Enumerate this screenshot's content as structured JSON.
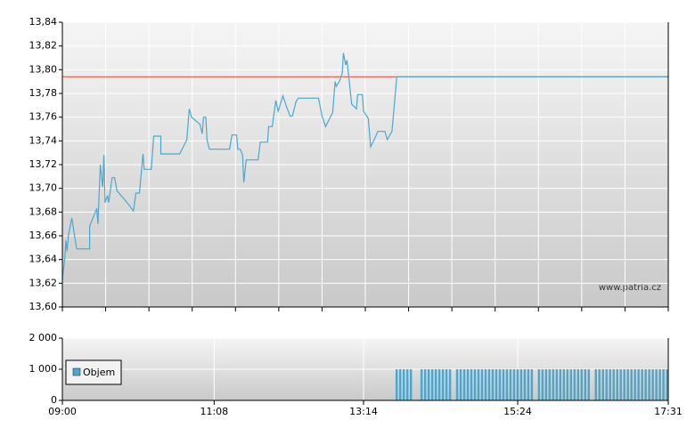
{
  "chart_data": [
    {
      "type": "line",
      "annotation": "www.patria.cz",
      "xlim": [
        "09:00",
        "17:31"
      ],
      "ylim": [
        13.6,
        13.84
      ],
      "yticks": [
        {
          "value": 13.6,
          "label": "13,60"
        },
        {
          "value": 13.62,
          "label": "13,62"
        },
        {
          "value": 13.64,
          "label": "13,64"
        },
        {
          "value": 13.66,
          "label": "13,66"
        },
        {
          "value": 13.68,
          "label": "13,68"
        },
        {
          "value": 13.7,
          "label": "13,70"
        },
        {
          "value": 13.72,
          "label": "13,72"
        },
        {
          "value": 13.74,
          "label": "13,74"
        },
        {
          "value": 13.76,
          "label": "13,76"
        },
        {
          "value": 13.78,
          "label": "13,78"
        },
        {
          "value": 13.8,
          "label": "13,80"
        },
        {
          "value": 13.82,
          "label": "13,82"
        },
        {
          "value": 13.84,
          "label": "13,84"
        }
      ],
      "grid": true,
      "reference_line": {
        "value": 13.794,
        "color": "#e8594a"
      },
      "x": [
        "09:00",
        "09:02",
        "09:03",
        "09:04",
        "09:05",
        "09:08",
        "09:12",
        "09:23",
        "09:23",
        "09:29",
        "09:30",
        "09:32",
        "09:34",
        "09:35",
        "09:36",
        "09:38",
        "09:39",
        "09:42",
        "09:44",
        "09:46",
        "09:53",
        "10:00",
        "10:02",
        "10:05",
        "10:08",
        "10:09",
        "10:15",
        "10:17",
        "10:23",
        "10:23",
        "10:39",
        "10:45",
        "10:47",
        "10:49",
        "10:56",
        "10:58",
        "10:59",
        "11:01",
        "11:02",
        "11:04",
        "11:21",
        "11:23",
        "11:27",
        "11:28",
        "11:30",
        "11:32",
        "11:33",
        "11:35",
        "11:45",
        "11:47",
        "11:53",
        "11:54",
        "11:57",
        "12:00",
        "12:02",
        "12:06",
        "12:09",
        "12:12",
        "12:14",
        "12:17",
        "12:19",
        "12:36",
        "12:39",
        "12:42",
        "12:48",
        "12:50",
        "12:51",
        "12:54",
        "12:56",
        "12:57",
        "12:59",
        "13:00",
        "13:02",
        "13:04",
        "13:08",
        "13:09",
        "13:13",
        "13:14",
        "13:18",
        "13:20",
        "13:23",
        "13:26",
        "13:32",
        "13:34",
        "13:38",
        "13:42",
        "17:31"
      ],
      "series": [
        {
          "color": "#4aa8d0",
          "values": [
            13.623,
            13.641,
            13.656,
            13.647,
            13.66,
            13.675,
            13.649,
            13.649,
            13.668,
            13.683,
            13.67,
            13.72,
            13.701,
            13.728,
            13.688,
            13.694,
            13.688,
            13.709,
            13.709,
            13.698,
            13.69,
            13.681,
            13.696,
            13.696,
            13.729,
            13.716,
            13.716,
            13.744,
            13.744,
            13.729,
            13.729,
            13.741,
            13.767,
            13.76,
            13.754,
            13.746,
            13.76,
            13.76,
            13.741,
            13.733,
            13.733,
            13.745,
            13.745,
            13.733,
            13.733,
            13.728,
            13.705,
            13.724,
            13.724,
            13.739,
            13.739,
            13.752,
            13.752,
            13.774,
            13.765,
            13.778,
            13.769,
            13.761,
            13.761,
            13.773,
            13.776,
            13.776,
            13.761,
            13.752,
            13.764,
            13.79,
            13.786,
            13.791,
            13.797,
            13.814,
            13.804,
            13.808,
            13.79,
            13.771,
            13.767,
            13.779,
            13.779,
            13.765,
            13.759,
            13.735,
            13.741,
            13.748,
            13.748,
            13.741,
            13.748,
            13.794,
            13.794
          ]
        }
      ]
    },
    {
      "type": "bar",
      "xlim": [
        "09:00",
        "17:31"
      ],
      "xticks": [
        "09:00",
        "11:08",
        "13:14",
        "15:24",
        "17:31"
      ],
      "ylim": [
        0,
        2000
      ],
      "yticks": [
        0,
        {
          "value": 1000,
          "label": "1 000"
        },
        {
          "value": 2000,
          "label": "2 000"
        }
      ],
      "legend": "upper left",
      "x": [
        "13:41",
        "13:44",
        "13:47",
        "13:50",
        "13:53",
        "14:02",
        "14:05",
        "14:08",
        "14:11",
        "14:14",
        "14:17",
        "14:20",
        "14:23",
        "14:26",
        "14:32",
        "14:35",
        "14:38",
        "14:41",
        "14:44",
        "14:47",
        "14:50",
        "14:53",
        "14:56",
        "14:59",
        "15:02",
        "15:05",
        "15:08",
        "15:11",
        "15:14",
        "15:17",
        "15:20",
        "15:23",
        "15:26",
        "15:29",
        "15:32",
        "15:35",
        "15:41",
        "15:44",
        "15:47",
        "15:50",
        "15:53",
        "15:56",
        "15:59",
        "16:02",
        "16:05",
        "16:08",
        "16:11",
        "16:14",
        "16:17",
        "16:20",
        "16:23",
        "16:29",
        "16:32",
        "16:35",
        "16:38",
        "16:41",
        "16:44",
        "16:47",
        "16:50",
        "16:53",
        "16:56",
        "16:59",
        "17:02",
        "17:05",
        "17:08",
        "17:11",
        "17:14",
        "17:17",
        "17:20",
        "17:23",
        "17:26",
        "17:29"
      ],
      "series": [
        {
          "name": "Objem",
          "color": "#4aa8d0",
          "values": [
            1000,
            1000,
            1000,
            1000,
            1000,
            1000,
            1000,
            1000,
            1000,
            1000,
            1000,
            1000,
            1000,
            1000,
            1000,
            1000,
            1000,
            1000,
            1000,
            1000,
            1000,
            1000,
            1000,
            1000,
            1000,
            1000,
            1000,
            1000,
            1000,
            1000,
            1000,
            1000,
            1000,
            1000,
            1000,
            1000,
            1000,
            1000,
            1000,
            1000,
            1000,
            1000,
            1000,
            1000,
            1000,
            1000,
            1000,
            1000,
            1000,
            1000,
            1000,
            1000,
            1000,
            1000,
            1000,
            1000,
            1000,
            1000,
            1000,
            1000,
            1000,
            1000,
            1000,
            1000,
            1000,
            1000,
            1000,
            1000,
            1000,
            1000,
            1000,
            1000
          ]
        }
      ]
    }
  ]
}
